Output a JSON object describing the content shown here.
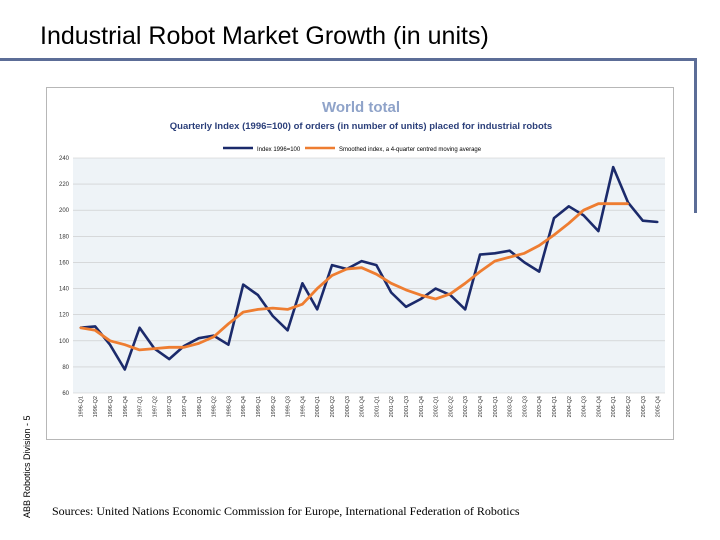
{
  "slide": {
    "title": "Industrial Robot Market Growth (in units)",
    "side_label": "ABB Robotics Division - 5",
    "sources": "Sources: United Nations Economic Commission for Europe, International Federation of Robotics"
  },
  "colors": {
    "index_line": "#1b2a6b",
    "smoothed_line": "#ee7d31",
    "title_text": "#8fa3c9",
    "subtitle_text": "#2b3f7a",
    "grid": "#c8c8c8",
    "plot_bg": "#eef3f7"
  },
  "chart_data": {
    "type": "line",
    "title": "World total",
    "subtitle": "Quarterly Index (1996=100) of orders (in number of units) placed for industrial robots",
    "legend": {
      "placement": "top"
    },
    "grid": true,
    "ylim": [
      60,
      240
    ],
    "yticks": [
      60,
      80,
      100,
      120,
      140,
      160,
      180,
      200,
      220,
      240
    ],
    "categories": [
      "1996-Q1",
      "1996-Q2",
      "1996-Q3",
      "1996-Q4",
      "1997-Q1",
      "1997-Q2",
      "1997-Q3",
      "1997-Q4",
      "1998-Q1",
      "1998-Q2",
      "1998-Q3",
      "1998-Q4",
      "1999-Q1",
      "1999-Q2",
      "1999-Q3",
      "1999-Q4",
      "2000-Q1",
      "2000-Q2",
      "2000-Q3",
      "2000-Q4",
      "2001-Q1",
      "2001-Q2",
      "2001-Q3",
      "2001-Q4",
      "2002-Q1",
      "2002-Q2",
      "2002-Q3",
      "2002-Q4",
      "2003-Q1",
      "2003-Q2",
      "2003-Q3",
      "2003-Q4",
      "2004-Q1",
      "2004-Q2",
      "2004-Q3",
      "2004-Q4",
      "2005-Q1",
      "2005-Q2",
      "2005-Q3",
      "2005-Q4"
    ],
    "series": [
      {
        "name": "Index 1996=100",
        "values": [
          110,
          111,
          97,
          78,
          110,
          94,
          86,
          96,
          102,
          104,
          97,
          143,
          135,
          119,
          108,
          144,
          124,
          158,
          155,
          161,
          158,
          137,
          126,
          132,
          140,
          135,
          124,
          166,
          167,
          169,
          160,
          153,
          194,
          203,
          196,
          184,
          233,
          206,
          192,
          191
        ]
      },
      {
        "name": "Smoothed index, a 4-quarter centred moving average",
        "values": [
          110,
          108,
          100,
          97,
          93,
          94,
          95,
          95,
          98,
          103,
          113,
          122,
          124,
          125,
          124,
          128,
          140,
          150,
          155,
          156,
          151,
          144,
          139,
          135,
          132,
          136,
          144,
          153,
          161,
          164,
          167,
          173,
          181,
          190,
          200,
          205,
          205,
          205,
          null,
          null
        ]
      }
    ]
  }
}
